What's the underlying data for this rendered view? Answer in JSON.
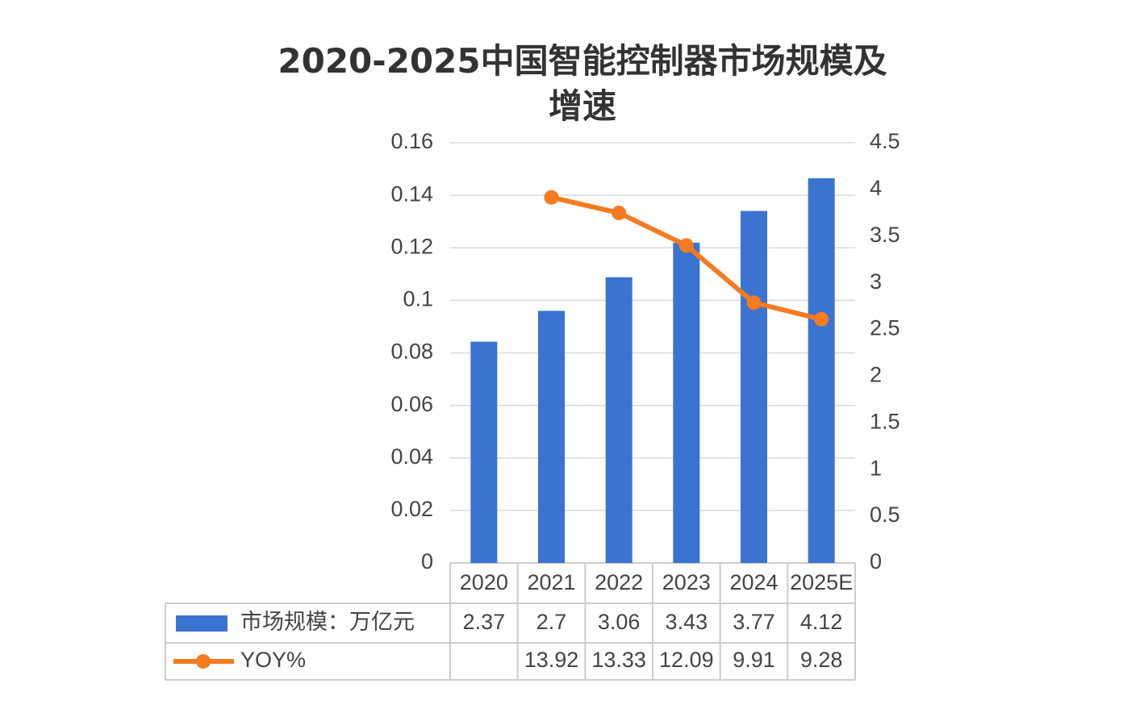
{
  "chart_data": {
    "type": "bar-line",
    "title": "2020-2025中国智能控制器市场规模及增速",
    "categories": [
      "2020",
      "2021",
      "2022",
      "2023",
      "2024",
      "2025E"
    ],
    "series": [
      {
        "name": "市场规模：万亿元",
        "type": "bar",
        "axis": "y2",
        "color": "#3a74d0",
        "values": [
          2.37,
          2.7,
          3.06,
          3.43,
          3.77,
          4.12
        ]
      },
      {
        "name": "YOY%",
        "type": "line",
        "color": "#f47b20",
        "values": [
          null,
          0.1392,
          0.1333,
          0.1209,
          0.0991,
          0.0928
        ],
        "value_labels": [
          null,
          "13.92",
          "13.33",
          "12.09",
          "9.91",
          "9.28"
        ]
      }
    ],
    "ylim": [
      0,
      0.16
    ],
    "yticks": [
      0,
      0.02,
      0.04,
      0.06,
      0.08,
      0.1,
      0.12,
      0.14,
      0.16
    ],
    "y2lim": [
      0,
      4.5
    ],
    "y2ticks": [
      0,
      0.5,
      1,
      1.5,
      2,
      2.5,
      3,
      3.5,
      4,
      4.5
    ],
    "grid": true,
    "data_table": true
  }
}
